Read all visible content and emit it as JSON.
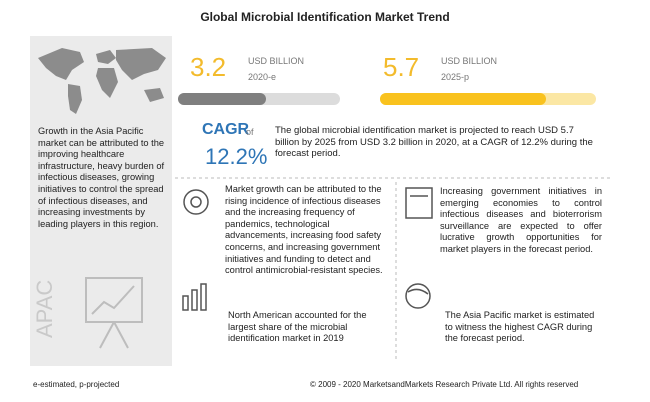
{
  "title": "Global Microbial Identification Market Trend",
  "market_2020": {
    "value": "3.2",
    "unit": "USD BILLION",
    "year": "2020-e"
  },
  "market_2025": {
    "value": "5.7",
    "unit": "USD BILLION",
    "year": "2025-p"
  },
  "cagr": {
    "label": "CAGR",
    "of": "of",
    "value": "12.2%",
    "text": "The global microbial identification market is projected to reach USD 5.7 billion by 2025 from USD 3.2 billion in 2020, at a CAGR of 12.2% during the forecast period."
  },
  "apac": {
    "text": "Growth in the Asia Pacific market can be attributed to the improving healthcare infrastructure, heavy burden of infectious diseases, growing initiatives to control the spread of infectious diseases, and increasing investments by leading players in this region.",
    "label": "APAC"
  },
  "insights": [
    "Market growth can be attributed to the rising incidence of infectious diseases and the increasing frequency of pandemics, technological advancements, increasing food safety concerns, and increasing government initiatives and funding to detect and control antimicrobial-resistant species.",
    "Increasing government initiatives in emerging economies to control infectious diseases and bioterrorism surveillance are expected to offer lucrative growth opportunities for market players in the forecast period.",
    "North American accounted for the largest share of the microbial identification market in 2019",
    "The Asia Pacific market is estimated to witness the highest CAGR during the forecast period."
  ],
  "footer": {
    "note": "e-estimated, p-projected",
    "copyright": "© 2009 - 2020 MarketsandMarkets Research Private Ltd. All rights reserved"
  }
}
